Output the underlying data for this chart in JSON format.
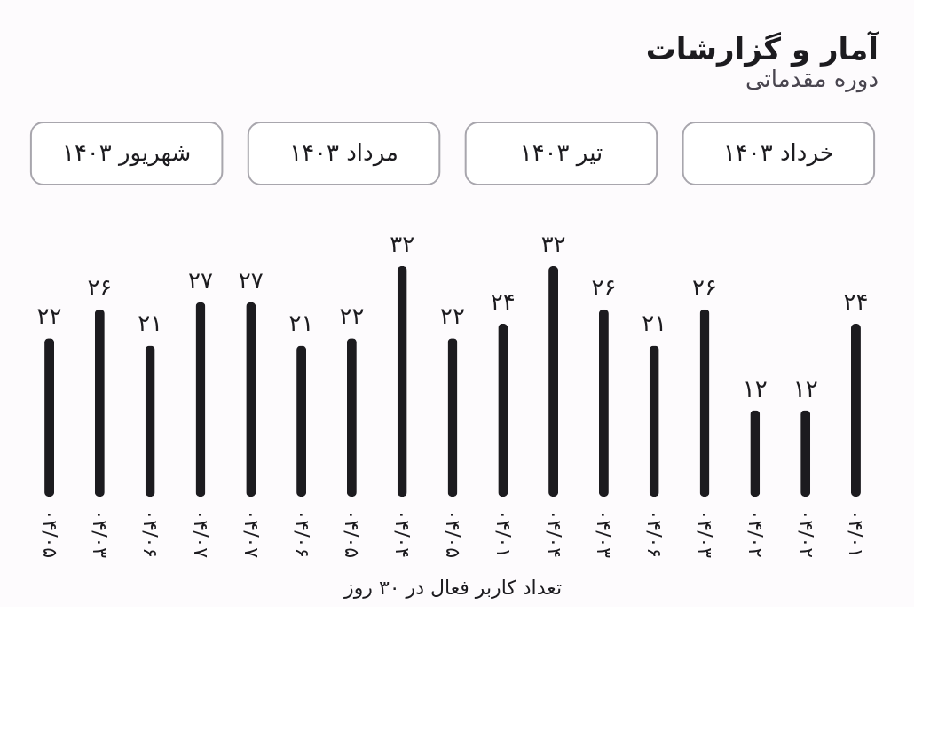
{
  "chart_data": {
    "type": "bar",
    "title": "آمار و گزارشات",
    "subtitle": "دوره مقدماتی",
    "xlabel": "تعداد کاربر فعال در ۳۰ روز",
    "annotations": [
      "شهریور ۱۴۰۳",
      "مرداد ۱۴۰۳",
      "تیر ۱۴۰۳",
      "خرداد ۱۴۰۳"
    ],
    "categories": [
      "۰۴/۰۵",
      "۰۴/۰۳",
      "۰۴/۰۶",
      "۰۴/۰۷",
      "۰۴/۰۷",
      "۰۴/۰۶",
      "۰۴/۰۵",
      "۰۴/۰۴",
      "۰۴/۰۵",
      "۰۴/۰۱",
      "۰۴/۰۴",
      "۰۴/۰۳",
      "۰۴/۰۶",
      "۰۴/۰۳",
      "۰۴/۰۲",
      "۰۴/۰۲",
      "۰۴/۰۱"
    ],
    "values": [
      22,
      26,
      21,
      27,
      27,
      21,
      22,
      32,
      22,
      24,
      32,
      26,
      21,
      26,
      12,
      12,
      24
    ],
    "value_labels": [
      "۲۲",
      "۲۶",
      "۲۱",
      "۲۷",
      "۲۷",
      "۲۱",
      "۲۲",
      "۳۲",
      "۲۲",
      "۲۴",
      "۳۲",
      "۲۶",
      "۲۱",
      "۲۶",
      "۱۲",
      "۱۲",
      "۲۴"
    ],
    "color": "#1c1b1f"
  }
}
